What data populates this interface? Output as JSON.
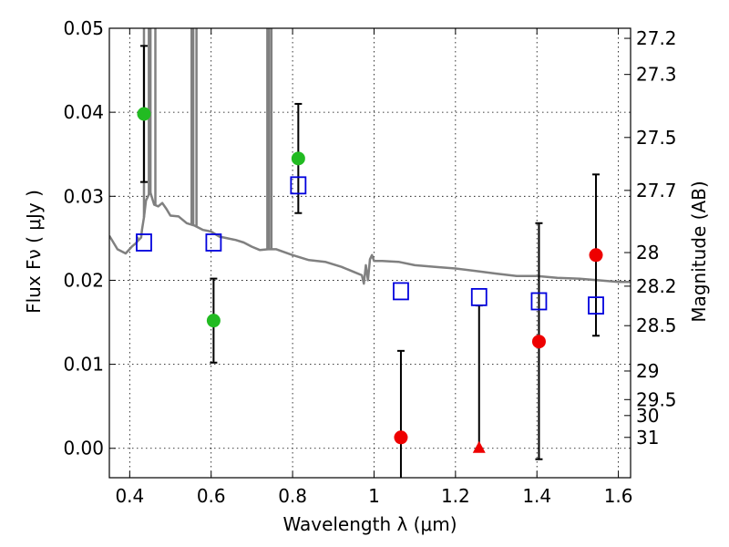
{
  "chart_data": {
    "type": "scatter",
    "xlabel": "Wavelength  λ (μm)",
    "ylabel": "Flux  Fν  ( μJy )",
    "ylabel_right": "Magnitude (AB)",
    "xlim": [
      0.35,
      1.63
    ],
    "ylim": [
      -0.0035,
      0.05
    ],
    "grid": true,
    "x_ticks": [
      0.4,
      0.6,
      0.8,
      1.0,
      1.2,
      1.4,
      1.6
    ],
    "x_tick_labels": [
      "0.4",
      "0.6",
      "0.8",
      "1",
      "1.2",
      "1.4",
      "1.6"
    ],
    "y_ticks": [
      0.0,
      0.01,
      0.02,
      0.03,
      0.04,
      0.05
    ],
    "y_tick_labels": [
      "0.00",
      "0.01",
      "0.02",
      "0.03",
      "0.04",
      "0.05"
    ],
    "right_ticks": [
      {
        "label": "27.2",
        "flux": 0.0488
      },
      {
        "label": "27.3",
        "flux": 0.0445
      },
      {
        "label": "27.5",
        "flux": 0.037
      },
      {
        "label": "27.7",
        "flux": 0.0307
      },
      {
        "label": "28",
        "flux": 0.0233
      },
      {
        "label": "28.2",
        "flux": 0.0193
      },
      {
        "label": "28.5",
        "flux": 0.0146
      },
      {
        "label": "29",
        "flux": 0.0092
      },
      {
        "label": "29.5",
        "flux": 0.0058
      },
      {
        "label": "30",
        "flux": 0.0039
      },
      {
        "label": "31",
        "flux": 0.0013
      }
    ],
    "series": [
      {
        "name": "Observed flux (green)",
        "marker": "circle",
        "color": "#22bb22",
        "points": [
          {
            "x": 0.435,
            "y": 0.0398,
            "ylo": 0.0317,
            "yhi": 0.0479
          },
          {
            "x": 0.606,
            "y": 0.0152,
            "ylo": 0.0102,
            "yhi": 0.0202
          },
          {
            "x": 0.814,
            "y": 0.0345,
            "ylo": 0.028,
            "yhi": 0.041
          }
        ]
      },
      {
        "name": "Observed flux (red)",
        "marker": "circle",
        "color": "#ee0000",
        "points": [
          {
            "x": 1.066,
            "y": 0.0013,
            "ylo": -0.0035,
            "yhi": 0.0116
          },
          {
            "x": 1.405,
            "y": 0.0127,
            "ylo": -0.0013,
            "yhi": 0.0268
          },
          {
            "x": 1.545,
            "y": 0.023,
            "ylo": 0.0134,
            "yhi": 0.0326
          }
        ]
      },
      {
        "name": "Observed flux (red triangle)",
        "marker": "triangle",
        "color": "#ee0000",
        "points": [
          {
            "x": 1.258,
            "y": 0.0,
            "ylo": 0.0,
            "yhi": 0.017
          }
        ]
      },
      {
        "name": "Model photometry",
        "marker": "square-open",
        "color": "#0000dd",
        "points": [
          {
            "x": 0.435,
            "y": 0.0245
          },
          {
            "x": 0.606,
            "y": 0.0245
          },
          {
            "x": 0.814,
            "y": 0.0313
          },
          {
            "x": 1.066,
            "y": 0.0187
          },
          {
            "x": 1.258,
            "y": 0.018
          },
          {
            "x": 1.405,
            "y": 0.0175
          },
          {
            "x": 1.545,
            "y": 0.017
          }
        ]
      },
      {
        "name": "Template spectrum",
        "type": "line",
        "color": "#808080",
        "x": [
          0.35,
          0.37,
          0.39,
          0.405,
          0.415,
          0.42,
          0.428,
          0.43,
          0.435,
          0.44,
          0.445,
          0.45,
          0.455,
          0.46,
          0.47,
          0.48,
          0.49,
          0.5,
          0.52,
          0.54,
          0.56,
          0.58,
          0.6,
          0.62,
          0.64,
          0.66,
          0.68,
          0.7,
          0.72,
          0.74,
          0.76,
          0.8,
          0.84,
          0.88,
          0.92,
          0.95,
          0.97,
          0.975,
          0.98,
          0.985,
          0.99,
          0.995,
          1.0,
          1.02,
          1.06,
          1.1,
          1.15,
          1.2,
          1.25,
          1.3,
          1.35,
          1.4,
          1.45,
          1.5,
          1.55,
          1.6,
          1.63
        ],
        "y": [
          0.0253,
          0.0237,
          0.0232,
          0.024,
          0.0244,
          0.0247,
          0.0251,
          0.026,
          0.0275,
          0.0295,
          0.03,
          0.0306,
          0.0298,
          0.029,
          0.0288,
          0.0292,
          0.0285,
          0.0277,
          0.0276,
          0.0268,
          0.0265,
          0.026,
          0.0258,
          0.0252,
          0.025,
          0.0248,
          0.0245,
          0.024,
          0.0236,
          0.0237,
          0.0237,
          0.023,
          0.0224,
          0.0222,
          0.0216,
          0.021,
          0.0206,
          0.0196,
          0.0218,
          0.02,
          0.0225,
          0.023,
          0.0223,
          0.0223,
          0.0222,
          0.0218,
          0.0216,
          0.0214,
          0.0211,
          0.0208,
          0.0205,
          0.0205,
          0.0203,
          0.0202,
          0.02,
          0.0198,
          0.0198
        ]
      }
    ],
    "spikes": [
      {
        "x": 0.419,
        "ytop": 0.0252
      },
      {
        "x": 0.435,
        "ytop": 0.05
      },
      {
        "x": 0.447,
        "ytop": 0.05
      },
      {
        "x": 0.451,
        "ytop": 0.05
      },
      {
        "x": 0.463,
        "ytop": 0.05
      },
      {
        "x": 0.552,
        "ytop": 0.05
      },
      {
        "x": 0.556,
        "ytop": 0.05
      },
      {
        "x": 0.564,
        "ytop": 0.05
      },
      {
        "x": 0.738,
        "ytop": 0.05
      },
      {
        "x": 0.742,
        "ytop": 0.05
      },
      {
        "x": 0.748,
        "ytop": 0.05
      }
    ]
  }
}
